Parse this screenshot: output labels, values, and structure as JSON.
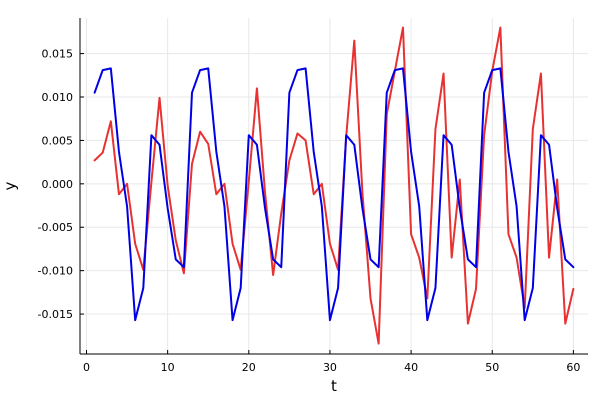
{
  "chart_data": {
    "type": "line",
    "title": "",
    "xlabel": "t",
    "ylabel": "y",
    "xlim": [
      -0.8,
      61.8
    ],
    "ylim": [
      -0.0196,
      0.0191
    ],
    "xticks": [
      0,
      10,
      20,
      30,
      40,
      50,
      60
    ],
    "xtick_labels": [
      "0",
      "10",
      "20",
      "30",
      "40",
      "50",
      "60"
    ],
    "yticks": [
      -0.015,
      -0.01,
      -0.005,
      0.0,
      0.005,
      0.01,
      0.015
    ],
    "ytick_labels": [
      "-0.015",
      "-0.010",
      "-0.005",
      "0.000",
      "0.005",
      "0.010",
      "0.015"
    ],
    "grid": true,
    "legend": "none",
    "series": [
      {
        "color": "#e83232",
        "x": [
          1,
          2,
          3,
          4,
          5,
          6,
          7,
          8,
          9,
          10,
          11,
          12,
          13,
          14,
          15,
          16,
          17,
          18,
          19,
          20,
          21,
          22,
          23,
          24,
          25,
          26,
          27,
          28,
          29,
          30,
          31,
          32,
          33,
          34,
          35,
          36,
          37,
          38,
          39,
          40,
          41,
          42,
          43,
          44,
          45,
          46,
          47,
          48,
          49,
          50,
          51,
          52,
          53,
          54,
          55,
          56,
          57,
          58,
          59,
          60
        ],
        "y": [
          0.0027,
          0.0036,
          0.0072,
          -0.0012,
          0.0,
          -0.0069,
          -0.0099,
          0.0002,
          0.0099,
          -0.0002,
          -0.0065,
          -0.0103,
          0.0023,
          0.006,
          0.0046,
          -0.0012,
          0.0,
          -0.0069,
          -0.0099,
          0.0003,
          0.011,
          -0.001,
          -0.0105,
          -0.0034,
          0.0027,
          0.0058,
          0.005,
          -0.0012,
          0.0,
          -0.0069,
          -0.0099,
          0.0054,
          0.0165,
          -0.001,
          -0.0132,
          -0.0184,
          0.008,
          0.013,
          0.018,
          -0.0058,
          -0.0085,
          -0.0132,
          0.0063,
          0.0127,
          -0.0085,
          0.0005,
          -0.0161,
          -0.0121,
          0.0056,
          0.013,
          0.018,
          -0.0058,
          -0.0085,
          -0.0143,
          0.0063,
          0.0127,
          -0.0085,
          0.0005,
          -0.0161,
          -0.0121
        ]
      },
      {
        "color": "#0000e6",
        "x": [
          1,
          2,
          3,
          4,
          5,
          6,
          7,
          8,
          9,
          10,
          11,
          12,
          13,
          14,
          15,
          16,
          17,
          18,
          19,
          20,
          21,
          22,
          23,
          24,
          25,
          26,
          27,
          28,
          29,
          30,
          31,
          32,
          33,
          34,
          35,
          36,
          37,
          38,
          39,
          40,
          41,
          42,
          43,
          44,
          45,
          46,
          47,
          48,
          49,
          50,
          51,
          52,
          53,
          54,
          55,
          56,
          57,
          58,
          59,
          60
        ],
        "y": [
          0.0105,
          0.0131,
          0.0133,
          0.0037,
          -0.0026,
          -0.0157,
          -0.012,
          0.0056,
          0.0045,
          -0.0028,
          -0.0087,
          -0.0096,
          0.0105,
          0.0131,
          0.0133,
          0.0037,
          -0.0026,
          -0.0157,
          -0.012,
          0.0056,
          0.0045,
          -0.0028,
          -0.0087,
          -0.0096,
          0.0105,
          0.0131,
          0.0133,
          0.0037,
          -0.0026,
          -0.0157,
          -0.012,
          0.0056,
          0.0045,
          -0.0028,
          -0.0087,
          -0.0096,
          0.0105,
          0.0131,
          0.0133,
          0.0037,
          -0.0026,
          -0.0157,
          -0.012,
          0.0056,
          0.0045,
          -0.0028,
          -0.0087,
          -0.0096,
          0.0105,
          0.0131,
          0.0133,
          0.0037,
          -0.0026,
          -0.0157,
          -0.012,
          0.0056,
          0.0045,
          -0.0028,
          -0.0087,
          -0.0096
        ]
      }
    ]
  }
}
